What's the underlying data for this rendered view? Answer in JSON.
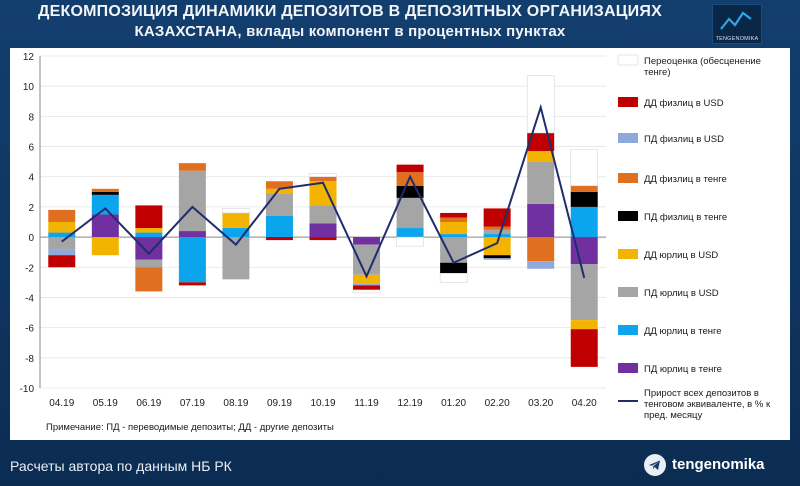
{
  "header": {
    "title_line1": "ДЕКОМПОЗИЦИЯ ДИНАМИКИ ДЕПОЗИТОВ В ДЕПОЗИТНЫХ ОРГАНИЗАЦИЯХ",
    "title_line2": "КАЗАХСТАНА, вклады компонент в процентных пунктах",
    "logo_text": "TENGENOMIKA"
  },
  "footer": {
    "source": "Расчеты автора по данным НБ РК",
    "channel": "tengenomika"
  },
  "colors": {
    "revaluation": "#ffffff",
    "dd_ind_usd": "#c00000",
    "pd_ind_usd": "#8fa9dc",
    "dd_ind_kzt": "#e07020",
    "pd_ind_kzt": "#000000",
    "dd_corp_usd": "#f2b400",
    "pd_corp_usd": "#a5a5a5",
    "pd_corp_kzt": "#0aa5ec",
    "pd_corp_kzt2": "#7030a0",
    "growth_line": "#1f2d6e"
  },
  "chart_data": {
    "type": "bar",
    "stacked": true,
    "title": "ДЕКОМПОЗИЦИЯ ДИНАМИКИ ДЕПОЗИТОВ В ДЕПОЗИТНЫХ ОРГАНИЗАЦИЯХ КАЗАХСТАНА, вклады компонент в процентных пунктах",
    "categories": [
      "04.19",
      "05.19",
      "06.19",
      "07.19",
      "08.19",
      "09.19",
      "10.19",
      "11.19",
      "12.19",
      "01.20",
      "02.20",
      "03.20",
      "04.20"
    ],
    "ylim": [
      -10,
      12
    ],
    "yticks": [
      -10,
      -8,
      -6,
      -4,
      -2,
      0,
      2,
      4,
      6,
      8,
      10,
      12
    ],
    "grid": true,
    "note": "Примечание: ПД - переводимые депозиты; ДД - другие депозиты",
    "series": [
      {
        "key": "pd_corp_kzt2",
        "name": "ПД юрлиц в тенге",
        "color": "#7030a0",
        "values": [
          0,
          1.5,
          -1.5,
          0.4,
          0,
          0,
          0.9,
          -0.5,
          0,
          0,
          0,
          2.2,
          -1.8
        ]
      },
      {
        "key": "pd_corp_kzt",
        "name": "ДД юрлиц в тенге",
        "color": "#0aa5ec",
        "values": [
          0.3,
          1.3,
          0.3,
          -3.0,
          0.6,
          1.4,
          0,
          0,
          0.6,
          0.2,
          0.2,
          0,
          2.0
        ]
      },
      {
        "key": "pd_corp_usd",
        "name": "ПД юрлиц в USD",
        "color": "#a5a5a5",
        "values": [
          -0.8,
          0,
          -0.5,
          4.0,
          -2.8,
          1.5,
          1.2,
          -2.0,
          2.0,
          -1.7,
          0.3,
          2.8,
          -3.7
        ]
      },
      {
        "key": "dd_corp_usd",
        "name": "ДД юрлиц в USD",
        "color": "#f2b400",
        "values": [
          0.7,
          -1.2,
          0.3,
          0,
          1.0,
          0.3,
          1.6,
          -0.6,
          0,
          0.8,
          -1.2,
          0.7,
          -0.6
        ]
      },
      {
        "key": "pd_ind_kzt",
        "name": "ПД физлиц в тенге",
        "color": "#000000",
        "values": [
          0,
          0.2,
          0,
          0,
          0,
          0,
          0,
          0,
          0.8,
          -0.7,
          -0.2,
          0,
          1.0
        ]
      },
      {
        "key": "dd_ind_kzt",
        "name": "ДД физлиц в тенге",
        "color": "#e07020",
        "values": [
          0.8,
          0.2,
          -1.6,
          0.5,
          0,
          0.5,
          0.3,
          0,
          0.9,
          0.3,
          0.2,
          -1.6,
          0.4
        ]
      },
      {
        "key": "pd_ind_usd",
        "name": "ПД физлиц в USD",
        "color": "#8fa9dc",
        "values": [
          -0.4,
          0,
          0,
          0,
          0,
          0,
          0,
          -0.1,
          0,
          0,
          -0.1,
          -0.5,
          0
        ]
      },
      {
        "key": "dd_ind_usd",
        "name": "ДД физлиц в USD",
        "color": "#c00000",
        "values": [
          -0.8,
          0,
          1.5,
          -0.2,
          0,
          -0.2,
          -0.2,
          -0.3,
          0.5,
          0.3,
          1.2,
          1.2,
          -2.5
        ]
      },
      {
        "key": "revaluation",
        "name": "Переоценка (обесценение тенге)",
        "color": "#ffffff",
        "values": [
          0,
          0,
          0,
          0,
          0.3,
          0,
          0.2,
          -0.2,
          -0.6,
          -0.6,
          0,
          3.8,
          2.4
        ]
      }
    ],
    "line": {
      "name": "Прирост всех депозитов в тенговом эквиваленте, в % к пред. месяцу",
      "color": "#1f2d6e",
      "values": [
        -0.3,
        1.9,
        -1.1,
        2.0,
        -0.5,
        3.2,
        3.6,
        -2.6,
        4.0,
        -1.7,
        -0.4,
        8.6,
        -2.7
      ]
    }
  },
  "legend_labels": [
    "Переоценка (обесценение тенге)",
    "ДД физлиц в USD",
    "ПД физлиц в USD",
    "ДД физлиц в тенге",
    "ПД физлиц в тенге",
    "ДД юрлиц в USD",
    "ПД юрлиц в USD",
    "ДД юрлиц в тенге",
    "ПД юрлиц в тенге",
    "Прирост всех депозитов в тенговом эквиваленте, в % к пред. месяцу"
  ]
}
